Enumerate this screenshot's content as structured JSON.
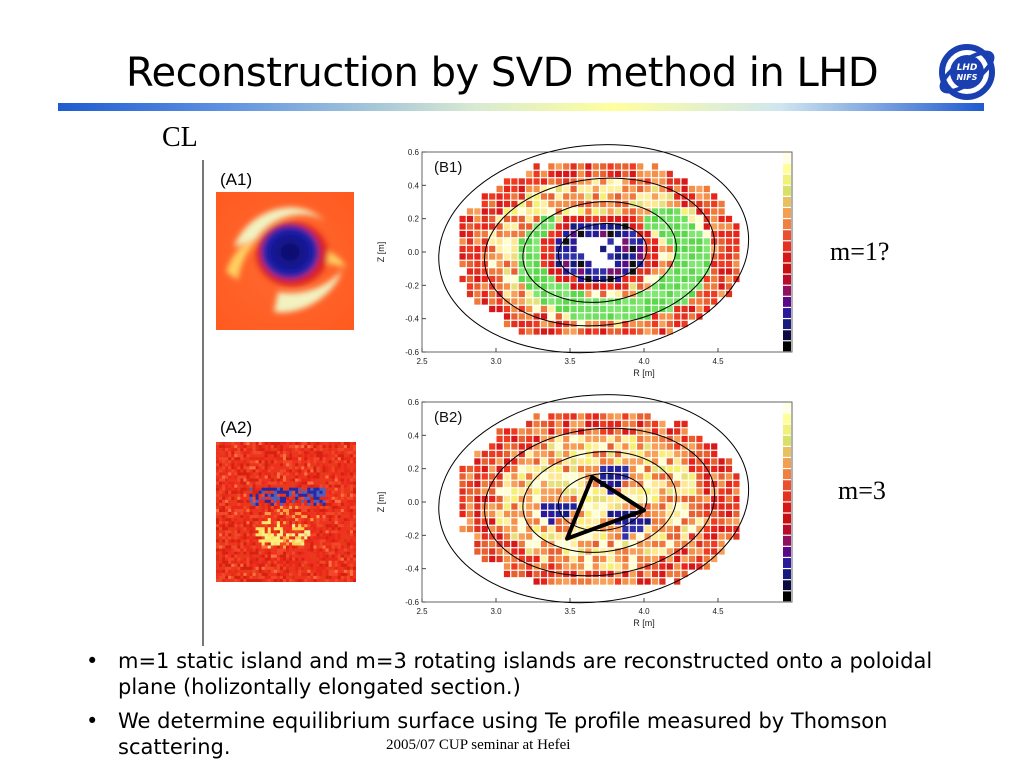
{
  "slide": {
    "title": "Reconstruction by SVD method in LHD",
    "logo_text": "LHD NIFS",
    "cl_label": "CL",
    "panel_labels": {
      "a1": "(A1)",
      "a2": "(A2)"
    },
    "mode_labels": {
      "b1": "m=1?",
      "b2": "m=3"
    },
    "bullets": [
      "m=1 static island and m=3 rotating islands are reconstructed onto a poloidal plane (holizontally elongated section.)",
      "We determine equilibrium surface using Te profile measured by Thomson scattering."
    ],
    "footer": "2005/07 CUP seminar at Hefei"
  },
  "chart_data": [
    {
      "type": "heatmap",
      "title": "(B1)",
      "xlabel": "R [m]",
      "ylabel": "Z [m]",
      "xlim": [
        2.5,
        5.0
      ],
      "ylim": [
        -0.6,
        0.6
      ],
      "xticks": [
        "2.5",
        "3.0",
        "3.5",
        "4.0",
        "4.5"
      ],
      "yticks": [
        "0.6",
        "0.4",
        "0.2",
        "0.0",
        "-0.2",
        "-0.4",
        "-0.6"
      ],
      "mode": "m1"
    },
    {
      "type": "heatmap",
      "title": "(B2)",
      "xlabel": "R [m]",
      "ylabel": "Z [m]",
      "xlim": [
        2.5,
        5.0
      ],
      "ylim": [
        -0.6,
        0.6
      ],
      "xticks": [
        "2.5",
        "3.0",
        "3.5",
        "4.0",
        "4.5"
      ],
      "yticks": [
        "0.6",
        "0.4",
        "0.2",
        "0.0",
        "-0.2",
        "-0.4",
        "-0.6"
      ],
      "mode": "m3",
      "triangle": [
        [
          3.65,
          0.15
        ],
        [
          4.0,
          -0.05
        ],
        [
          3.48,
          -0.22
        ]
      ]
    }
  ],
  "colors": {
    "colorbar": [
      "#ffffe6",
      "#ffff9a",
      "#f0f07a",
      "#d8e06a",
      "#e8c060",
      "#f0a050",
      "#f08040",
      "#e85030",
      "#e83020",
      "#d81818",
      "#c81010",
      "#b80c2a",
      "#901060",
      "#5a0a88",
      "#2a1a9a",
      "#161c7c",
      "#0a0a40",
      "#000000"
    ]
  }
}
